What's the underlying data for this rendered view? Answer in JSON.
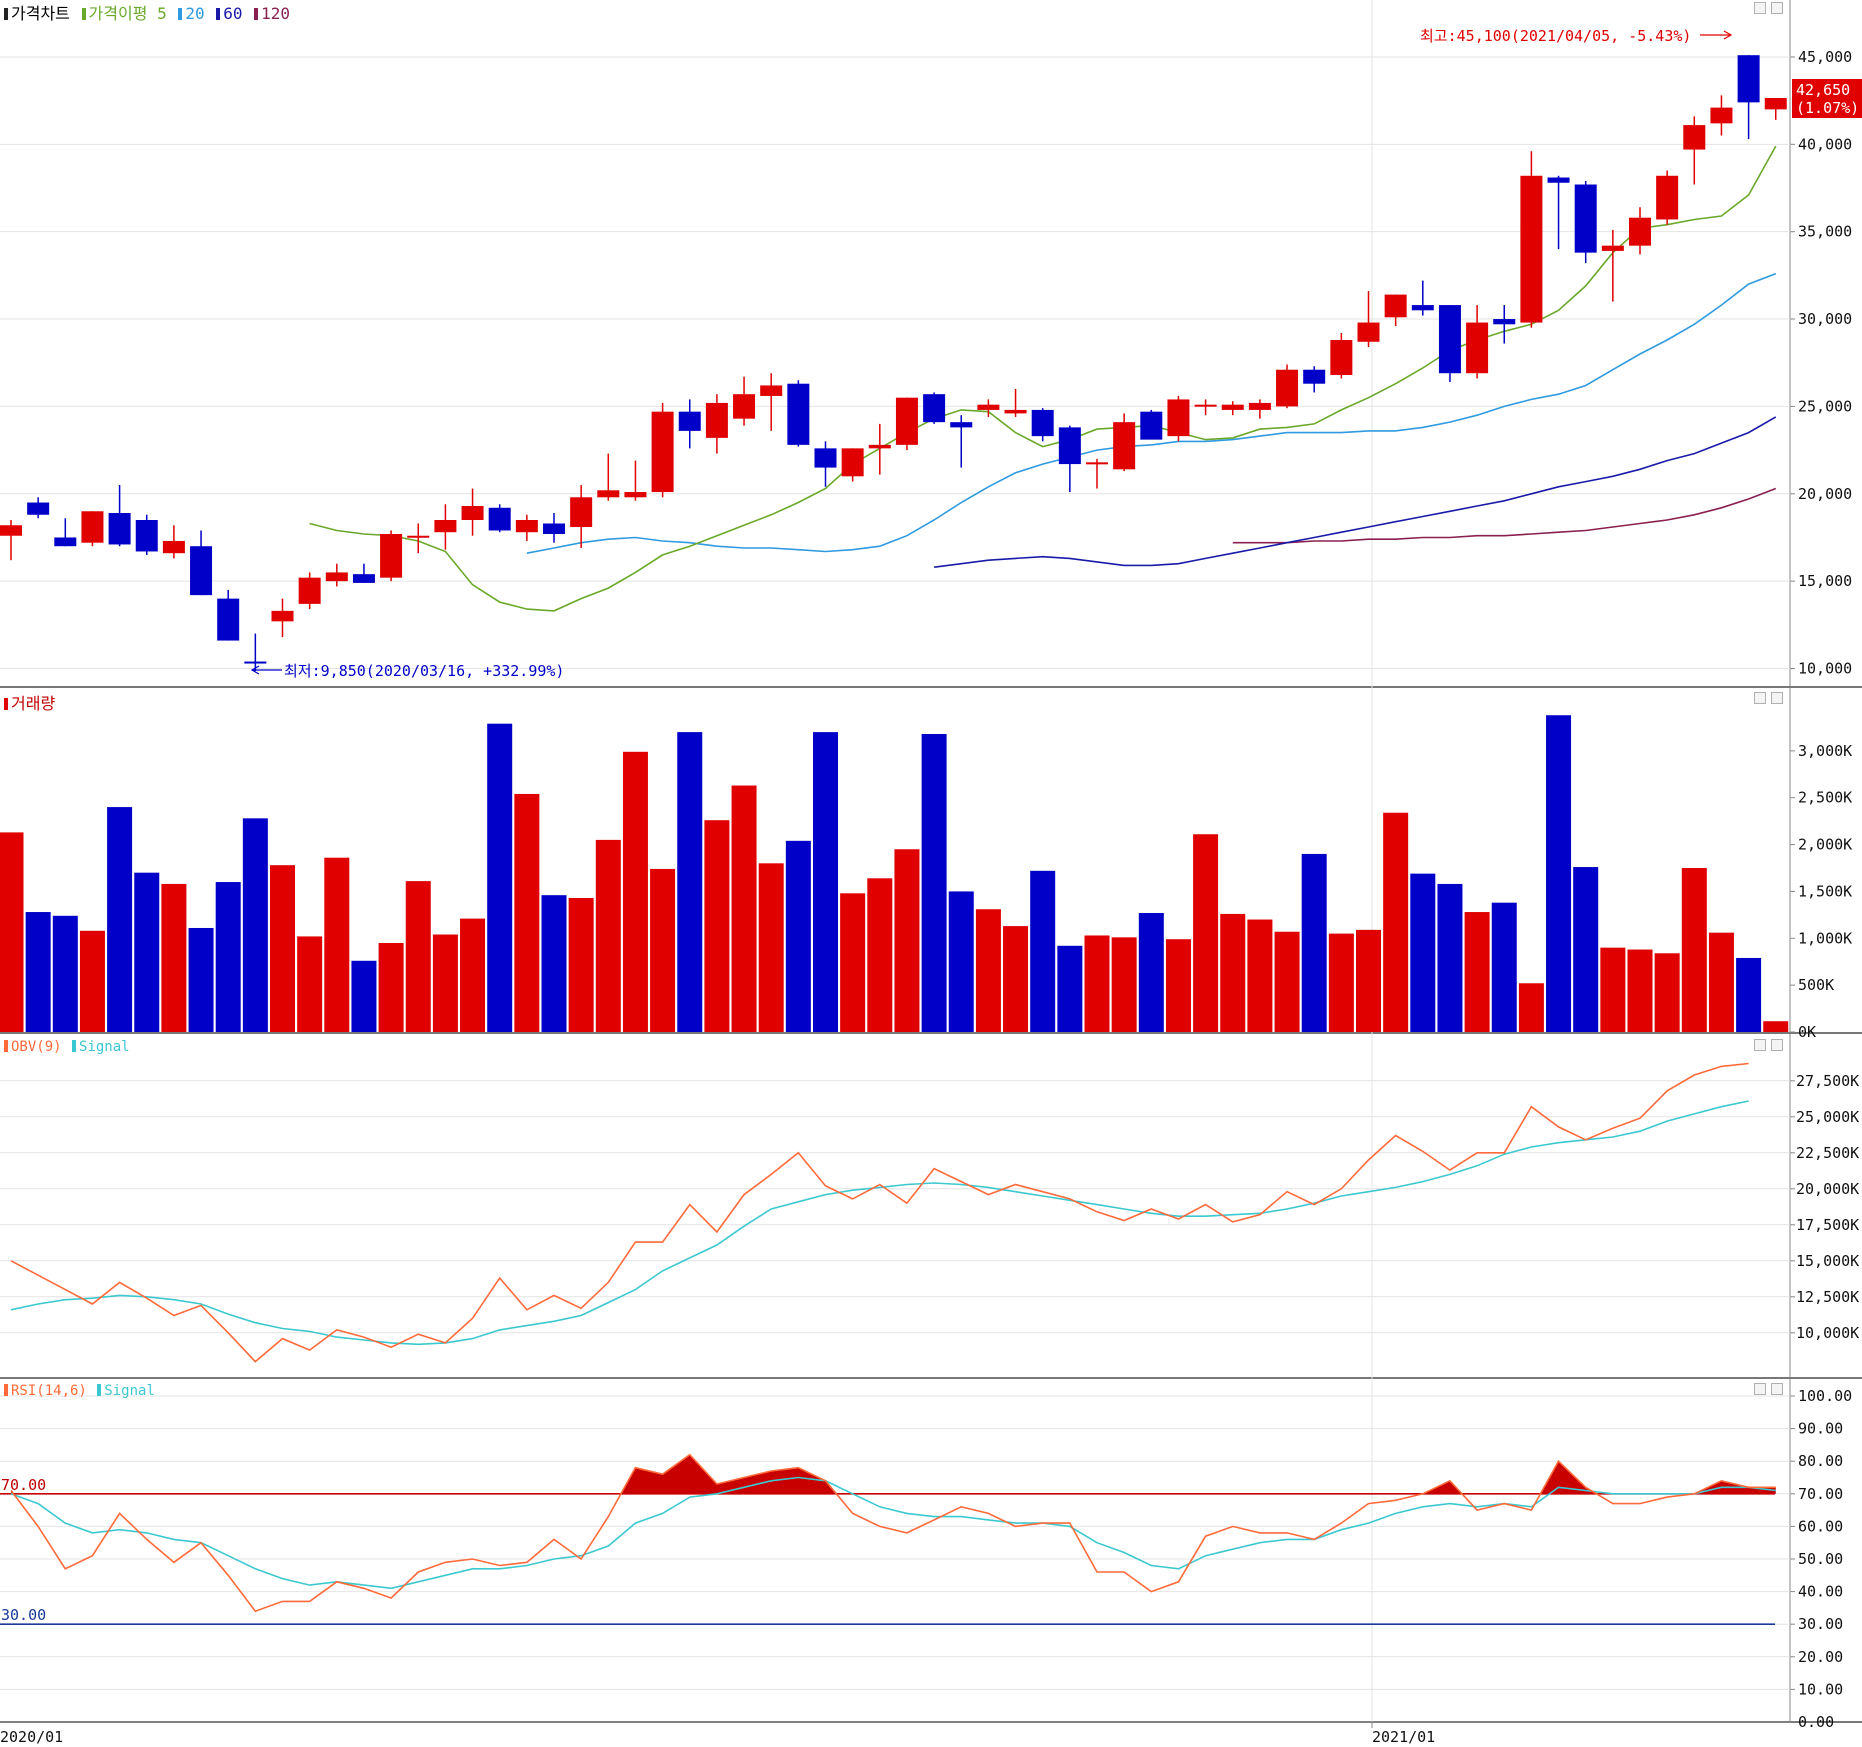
{
  "colors": {
    "up": "#e00000",
    "down": "#0000c8",
    "ma5": "#6aa82a",
    "ma20": "#2f9ae0",
    "ma60": "#1a1aa8",
    "ma120": "#8a2050",
    "obv": "#ff6a3a",
    "signal": "#3cc8d0",
    "rsi_fill": "#c80000",
    "grid": "#e4e4e4",
    "axis": "#888888"
  },
  "price_pane": {
    "title": "가격차트",
    "ma_title": "가격이평",
    "ma_labels": [
      "5",
      "20",
      "60",
      "120"
    ],
    "yticks": [
      "45,000",
      "40,000",
      "35,000",
      "30,000",
      "25,000",
      "20,000",
      "15,000",
      "10,000"
    ],
    "high_note": "최고:45,100(2021/04/05, -5.43%)",
    "low_note": "최저:9,850(2020/03/16, +332.99%)",
    "last_price": "42,650",
    "last_change": "(1.07%)"
  },
  "volume_pane": {
    "title": "거래량",
    "yticks": [
      "3,000K",
      "2,500K",
      "2,000K",
      "1,500K",
      "1,000K",
      "500K",
      "0K"
    ]
  },
  "obv_pane": {
    "title": "OBV(9)",
    "signal_label": "Signal",
    "yticks": [
      "27,500K",
      "25,000K",
      "22,500K",
      "20,000K",
      "17,500K",
      "15,000K",
      "12,500K",
      "10,000K"
    ]
  },
  "rsi_pane": {
    "title": "RSI(14,6)",
    "signal_label": "Signal",
    "yticks": [
      "100.00",
      "90.00",
      "80.00",
      "70.00",
      "60.00",
      "50.00",
      "40.00",
      "30.00",
      "20.00",
      "10.00",
      "0.00"
    ],
    "upper_label": "70.00",
    "lower_label": "30.00"
  },
  "xaxis": {
    "labels": [
      "2020/01",
      "2021/01"
    ]
  },
  "chart_data": [
    {
      "type": "candlestick",
      "ylim": [
        9000,
        47000
      ],
      "candles": [
        {
          "o": 17600,
          "h": 18500,
          "l": 16200,
          "c": 18200
        },
        {
          "o": 19500,
          "h": 19800,
          "l": 18600,
          "c": 18800
        },
        {
          "o": 17500,
          "h": 18600,
          "l": 17000,
          "c": 17000
        },
        {
          "o": 17200,
          "h": 19000,
          "l": 17000,
          "c": 19000
        },
        {
          "o": 18900,
          "h": 20500,
          "l": 17000,
          "c": 17100
        },
        {
          "o": 18500,
          "h": 18800,
          "l": 16500,
          "c": 16700
        },
        {
          "o": 16600,
          "h": 18200,
          "l": 16300,
          "c": 17300
        },
        {
          "o": 17000,
          "h": 17900,
          "l": 14200,
          "c": 14200
        },
        {
          "o": 14000,
          "h": 14500,
          "l": 11600,
          "c": 11600
        },
        {
          "o": 10400,
          "h": 12000,
          "l": 9850,
          "c": 10300
        },
        {
          "o": 12700,
          "h": 14000,
          "l": 11800,
          "c": 13300
        },
        {
          "o": 13700,
          "h": 15500,
          "l": 13400,
          "c": 15200
        },
        {
          "o": 15000,
          "h": 16000,
          "l": 14700,
          "c": 15500
        },
        {
          "o": 15400,
          "h": 16000,
          "l": 14900,
          "c": 14900
        },
        {
          "o": 15200,
          "h": 17900,
          "l": 15000,
          "c": 17700
        },
        {
          "o": 17600,
          "h": 18300,
          "l": 16600,
          "c": 17600
        },
        {
          "o": 17800,
          "h": 19400,
          "l": 16800,
          "c": 18500
        },
        {
          "o": 18500,
          "h": 20300,
          "l": 17600,
          "c": 19300
        },
        {
          "o": 19200,
          "h": 19400,
          "l": 17800,
          "c": 17900
        },
        {
          "o": 17800,
          "h": 18800,
          "l": 17300,
          "c": 18500
        },
        {
          "o": 18300,
          "h": 18900,
          "l": 17200,
          "c": 17700
        },
        {
          "o": 18100,
          "h": 20500,
          "l": 16900,
          "c": 19800
        },
        {
          "o": 19800,
          "h": 22300,
          "l": 19600,
          "c": 20200
        },
        {
          "o": 19800,
          "h": 21900,
          "l": 19600,
          "c": 20100
        },
        {
          "o": 20100,
          "h": 25200,
          "l": 19800,
          "c": 24700
        },
        {
          "o": 24700,
          "h": 25400,
          "l": 22600,
          "c": 23600
        },
        {
          "o": 23200,
          "h": 25700,
          "l": 22300,
          "c": 25200
        },
        {
          "o": 24300,
          "h": 26700,
          "l": 23900,
          "c": 25700
        },
        {
          "o": 25600,
          "h": 26900,
          "l": 23600,
          "c": 26200
        },
        {
          "o": 26300,
          "h": 26500,
          "l": 22700,
          "c": 22800
        },
        {
          "o": 22600,
          "h": 23000,
          "l": 20400,
          "c": 21500
        },
        {
          "o": 21000,
          "h": 22600,
          "l": 20700,
          "c": 22600
        },
        {
          "o": 22600,
          "h": 24000,
          "l": 21100,
          "c": 22800
        },
        {
          "o": 22800,
          "h": 25500,
          "l": 22500,
          "c": 25500
        },
        {
          "o": 25700,
          "h": 25800,
          "l": 24000,
          "c": 24100
        },
        {
          "o": 24100,
          "h": 24500,
          "l": 21500,
          "c": 23800
        },
        {
          "o": 24800,
          "h": 25400,
          "l": 24400,
          "c": 25100
        },
        {
          "o": 24600,
          "h": 26000,
          "l": 24400,
          "c": 24800
        },
        {
          "o": 24800,
          "h": 24900,
          "l": 23000,
          "c": 23300
        },
        {
          "o": 23800,
          "h": 23900,
          "l": 20100,
          "c": 21700
        },
        {
          "o": 21800,
          "h": 22000,
          "l": 20300,
          "c": 21800
        },
        {
          "o": 21400,
          "h": 24600,
          "l": 21300,
          "c": 24100
        },
        {
          "o": 24700,
          "h": 24800,
          "l": 23400,
          "c": 23100
        },
        {
          "o": 23300,
          "h": 25600,
          "l": 23000,
          "c": 25400
        },
        {
          "o": 25000,
          "h": 25400,
          "l": 24500,
          "c": 25100
        },
        {
          "o": 24800,
          "h": 25300,
          "l": 24500,
          "c": 25100
        },
        {
          "o": 24800,
          "h": 25400,
          "l": 24300,
          "c": 25200
        },
        {
          "o": 25000,
          "h": 27400,
          "l": 24900,
          "c": 27100
        },
        {
          "o": 27100,
          "h": 27300,
          "l": 25800,
          "c": 26300
        },
        {
          "o": 26800,
          "h": 29200,
          "l": 26600,
          "c": 28800
        },
        {
          "o": 28700,
          "h": 31600,
          "l": 28400,
          "c": 29800
        },
        {
          "o": 30100,
          "h": 31400,
          "l": 29600,
          "c": 31400
        },
        {
          "o": 30800,
          "h": 32200,
          "l": 30200,
          "c": 30500
        },
        {
          "o": 30800,
          "h": 30800,
          "l": 26400,
          "c": 26900
        },
        {
          "o": 26900,
          "h": 30800,
          "l": 26600,
          "c": 29800
        },
        {
          "o": 30000,
          "h": 30800,
          "l": 28600,
          "c": 29700
        },
        {
          "o": 29800,
          "h": 39600,
          "l": 29500,
          "c": 38200
        },
        {
          "o": 38100,
          "h": 38200,
          "l": 34000,
          "c": 37800
        },
        {
          "o": 37700,
          "h": 37900,
          "l": 33200,
          "c": 33800
        },
        {
          "o": 33900,
          "h": 35100,
          "l": 31000,
          "c": 34200
        },
        {
          "o": 34200,
          "h": 36400,
          "l": 33700,
          "c": 35800
        },
        {
          "o": 35700,
          "h": 38500,
          "l": 35400,
          "c": 38200
        },
        {
          "o": 39700,
          "h": 41600,
          "l": 37700,
          "c": 41100
        },
        {
          "o": 41200,
          "h": 42800,
          "l": 40500,
          "c": 42100
        },
        {
          "o": 45100,
          "h": 45100,
          "l": 40300,
          "c": 42400
        },
        {
          "o": 42000,
          "h": 42600,
          "l": 41400,
          "c": 42650
        }
      ],
      "ma5": [
        18300,
        17900,
        17700,
        17600,
        17300,
        16700,
        14800,
        13800,
        13400,
        13300,
        14000,
        14600,
        15500,
        16500,
        17000,
        17600,
        18200,
        18800,
        19500,
        20300,
        21700,
        22600,
        23500,
        24300,
        24800,
        24700,
        23500,
        22700,
        23100,
        23700,
        23800,
        23900,
        23500,
        23100,
        23200,
        23700,
        23800,
        24000,
        24800,
        25500,
        26300,
        27200,
        28200,
        28800,
        29300,
        29700,
        30500,
        31900,
        33800,
        35200,
        35400,
        35700,
        35900,
        37100,
        39900
      ],
      "ma20": [
        16600,
        16900,
        17200,
        17400,
        17500,
        17300,
        17200,
        17000,
        16900,
        16900,
        16800,
        16700,
        16800,
        17000,
        17600,
        18500,
        19500,
        20400,
        21200,
        21700,
        22100,
        22500,
        22700,
        22800,
        23000,
        23000,
        23100,
        23300,
        23500,
        23500,
        23500,
        23600,
        23600,
        23800,
        24100,
        24500,
        25000,
        25400,
        25700,
        26200,
        27100,
        28000,
        28800,
        29700,
        30800,
        32000,
        32600
      ],
      "ma60": [
        15800,
        16000,
        16200,
        16300,
        16400,
        16300,
        16100,
        15900,
        15900,
        16000,
        16300,
        16600,
        16900,
        17200,
        17500,
        17800,
        18100,
        18400,
        18700,
        19000,
        19300,
        19600,
        20000,
        20400,
        20700,
        21000,
        21400,
        21900,
        22300,
        22900,
        23500,
        24400
      ],
      "ma120": [
        17200,
        17200,
        17200,
        17300,
        17300,
        17400,
        17400,
        17500,
        17500,
        17600,
        17600,
        17700,
        17800,
        17900,
        18100,
        18300,
        18500,
        18800,
        19200,
        19700,
        20300
      ]
    },
    {
      "type": "bar",
      "ylim": [
        0,
        3500
      ],
      "unit": "K",
      "values": [
        2130,
        1280,
        1240,
        1080,
        2400,
        1700,
        1580,
        1110,
        1600,
        2280,
        1780,
        1020,
        1860,
        760,
        950,
        1610,
        1040,
        1210,
        3290,
        2540,
        1460,
        1430,
        2050,
        2990,
        1740,
        3200,
        2260,
        2630,
        1800,
        2040,
        3200,
        1480,
        1640,
        1950,
        3180,
        1500,
        1310,
        1130,
        1720,
        920,
        1030,
        1010,
        1270,
        990,
        2110,
        1260,
        1200,
        1070,
        1900,
        1050,
        1090,
        2340,
        1690,
        1580,
        1280,
        1380,
        520,
        3380,
        1760,
        900,
        880,
        840,
        1750,
        1060,
        790,
        115
      ]
    },
    {
      "type": "line",
      "ylim": [
        7000,
        29500
      ],
      "series": [
        {
          "name": "OBV(9)",
          "values": [
            15000,
            14000,
            13000,
            12000,
            13500,
            12400,
            11200,
            11900,
            10000,
            8000,
            9600,
            8800,
            10200,
            9700,
            9000,
            9900,
            9300,
            11000,
            13800,
            11600,
            12600,
            11700,
            13500,
            16300,
            16300,
            18900,
            17000,
            19600,
            21000,
            22500,
            20200,
            19300,
            20300,
            19000,
            21400,
            20500,
            19600,
            20300,
            19800,
            19300,
            18400,
            17800,
            18600,
            17900,
            18900,
            17700,
            18200,
            19800,
            18900,
            20000,
            22000,
            23700,
            22600,
            21300,
            22500,
            22500,
            25700,
            24300,
            23400,
            24200,
            24900,
            26800,
            27900,
            28500,
            28700
          ]
        },
        {
          "name": "Signal",
          "values": [
            11600,
            12000,
            12300,
            12400,
            12600,
            12500,
            12300,
            12000,
            11300,
            10700,
            10300,
            10100,
            9700,
            9500,
            9300,
            9200,
            9300,
            9600,
            10200,
            10500,
            10800,
            11200,
            12100,
            13000,
            14300,
            15200,
            16100,
            17400,
            18600,
            19100,
            19600,
            19900,
            20100,
            20300,
            20400,
            20300,
            20100,
            19800,
            19500,
            19200,
            18900,
            18600,
            18300,
            18100,
            18100,
            18200,
            18300,
            18600,
            19000,
            19500,
            19800,
            20100,
            20500,
            21000,
            21600,
            22400,
            22900,
            23200,
            23400,
            23600,
            24000,
            24700,
            25200,
            25700,
            26100
          ]
        }
      ]
    },
    {
      "type": "line",
      "ylim": [
        0,
        100
      ],
      "series": [
        {
          "name": "RSI(14,6)",
          "values": [
            71,
            60,
            47,
            51,
            64,
            56,
            49,
            55,
            45,
            34,
            37,
            37,
            43,
            41,
            38,
            46,
            49,
            50,
            48,
            49,
            56,
            50,
            63,
            78,
            76,
            82,
            73,
            75,
            77,
            78,
            74,
            64,
            60,
            58,
            62,
            66,
            64,
            60,
            61,
            61,
            46,
            46,
            40,
            43,
            57,
            60,
            58,
            58,
            56,
            61,
            67,
            68,
            70,
            74,
            65,
            67,
            65,
            80,
            72,
            67,
            67,
            69,
            70,
            74,
            72,
            72
          ]
        },
        {
          "name": "Signal",
          "values": [
            70,
            67,
            61,
            58,
            59,
            58,
            56,
            55,
            51,
            47,
            44,
            42,
            43,
            42,
            41,
            43,
            45,
            47,
            47,
            48,
            50,
            51,
            54,
            61,
            64,
            69,
            70,
            72,
            74,
            75,
            74,
            70,
            66,
            64,
            63,
            63,
            62,
            61,
            61,
            60,
            55,
            52,
            48,
            47,
            51,
            53,
            55,
            56,
            56,
            59,
            61,
            64,
            66,
            67,
            66,
            67,
            66,
            72,
            71,
            70,
            70,
            70,
            70,
            72,
            72,
            71
          ]
        }
      ],
      "lines": [
        70,
        30
      ]
    }
  ]
}
